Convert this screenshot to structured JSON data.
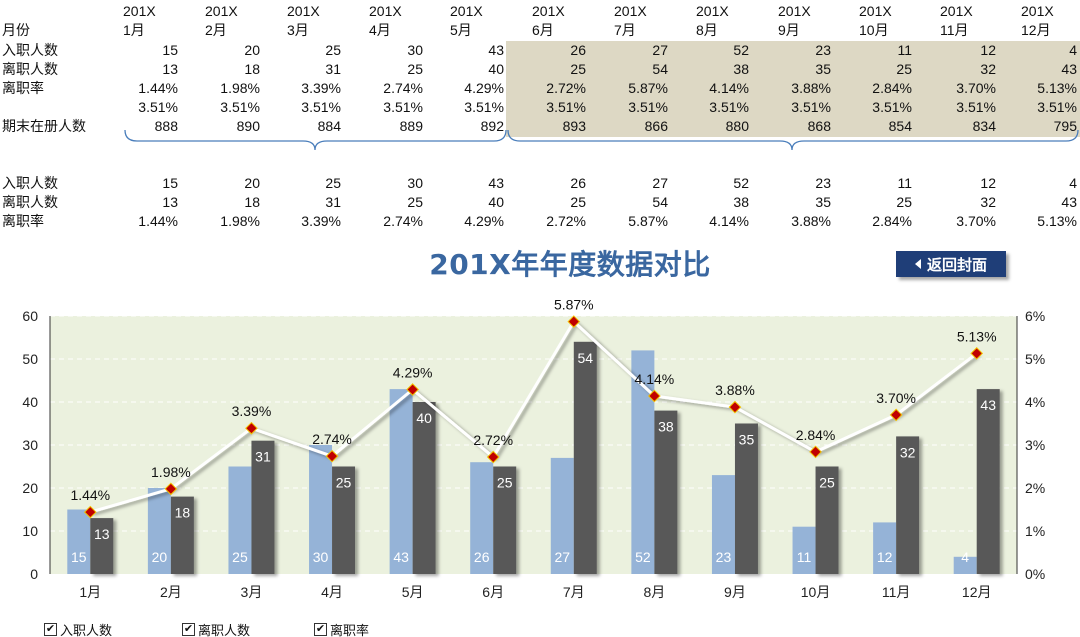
{
  "top_table": {
    "corner_label": "月份",
    "months": [
      {
        "year": "201X",
        "month": "1月"
      },
      {
        "year": "201X",
        "month": "2月"
      },
      {
        "year": "201X",
        "month": "3月"
      },
      {
        "year": "201X",
        "month": "4月"
      },
      {
        "year": "201X",
        "month": "5月"
      },
      {
        "year": "201X",
        "month": "6月"
      },
      {
        "year": "201X",
        "month": "7月"
      },
      {
        "year": "201X",
        "month": "8月"
      },
      {
        "year": "201X",
        "month": "9月"
      },
      {
        "year": "201X",
        "month": "10月"
      },
      {
        "year": "201X",
        "month": "11月"
      },
      {
        "year": "201X",
        "month": "12月"
      }
    ],
    "rows": [
      {
        "label": "入职人数",
        "values": [
          "15",
          "20",
          "25",
          "30",
          "43",
          "26",
          "27",
          "52",
          "23",
          "11",
          "12",
          "4"
        ]
      },
      {
        "label": "离职人数",
        "values": [
          "13",
          "18",
          "31",
          "25",
          "40",
          "25",
          "54",
          "38",
          "35",
          "25",
          "32",
          "43"
        ]
      },
      {
        "label": "离职率",
        "values": [
          "1.44%",
          "1.98%",
          "3.39%",
          "2.74%",
          "4.29%",
          "2.72%",
          "5.87%",
          "4.14%",
          "3.88%",
          "2.84%",
          "3.70%",
          "5.13%"
        ]
      },
      {
        "label": "",
        "values": [
          "3.51%",
          "3.51%",
          "3.51%",
          "3.51%",
          "3.51%",
          "3.51%",
          "3.51%",
          "3.51%",
          "3.51%",
          "3.51%",
          "3.51%",
          "3.51%"
        ]
      },
      {
        "label": "期末在册人数",
        "values": [
          "888",
          "890",
          "884",
          "889",
          "892",
          "893",
          "866",
          "880",
          "868",
          "854",
          "834",
          "795"
        ]
      }
    ]
  },
  "bottom_table": {
    "rows": [
      {
        "label": "入职人数",
        "values": [
          "15",
          "20",
          "25",
          "30",
          "43",
          "26",
          "27",
          "52",
          "23",
          "11",
          "12",
          "4"
        ]
      },
      {
        "label": "离职人数",
        "values": [
          "13",
          "18",
          "31",
          "25",
          "40",
          "25",
          "54",
          "38",
          "35",
          "25",
          "32",
          "43"
        ]
      },
      {
        "label": "离职率",
        "values": [
          "1.44%",
          "1.98%",
          "3.39%",
          "2.74%",
          "4.29%",
          "2.72%",
          "5.87%",
          "4.14%",
          "3.88%",
          "2.84%",
          "3.70%",
          "5.13%"
        ]
      }
    ]
  },
  "title": "201X年年度数据对比",
  "back_button_label": "返回封面",
  "colors": {
    "hire_bar": "#95b3d7",
    "leave_bar": "#595959",
    "plot_bg": "#ebf1de",
    "rate_line": "#ffffff",
    "rate_marker": "#c00000",
    "title": "#3a67a0",
    "button": "#1f3e78",
    "shade": "#ddd8c4"
  },
  "legend": [
    {
      "label": "入职人数",
      "checked": true
    },
    {
      "label": "离职人数",
      "checked": true
    },
    {
      "label": "离职率",
      "checked": true
    }
  ],
  "chart_data": {
    "type": "bar",
    "title": "201X年年度数据对比",
    "categories": [
      "1月",
      "2月",
      "3月",
      "4月",
      "5月",
      "6月",
      "7月",
      "8月",
      "9月",
      "10月",
      "11月",
      "12月"
    ],
    "series": [
      {
        "name": "入职人数",
        "type": "bar",
        "axis": "left",
        "values": [
          15,
          20,
          25,
          30,
          43,
          26,
          27,
          52,
          23,
          11,
          12,
          4
        ]
      },
      {
        "name": "离职人数",
        "type": "bar",
        "axis": "left",
        "values": [
          13,
          18,
          31,
          25,
          40,
          25,
          54,
          38,
          35,
          25,
          32,
          43
        ]
      },
      {
        "name": "离职率",
        "type": "line",
        "axis": "right",
        "values": [
          1.44,
          1.98,
          3.39,
          2.74,
          4.29,
          2.72,
          5.87,
          4.14,
          3.88,
          2.84,
          3.7,
          5.13
        ],
        "labels": [
          "1.44%",
          "1.98%",
          "3.39%",
          "2.74%",
          "4.29%",
          "2.72%",
          "5.87%",
          "4.14%",
          "3.88%",
          "2.84%",
          "3.70%",
          "5.13%"
        ]
      }
    ],
    "ylim": [
      0,
      60
    ],
    "y_ticks": [
      "0",
      "10",
      "20",
      "30",
      "40",
      "50",
      "60"
    ],
    "y2lim": [
      0,
      6
    ],
    "y2_ticks": [
      "0%",
      "1%",
      "2%",
      "3%",
      "4%",
      "5%",
      "6%"
    ],
    "grid": true,
    "legend_position": "bottom-left"
  }
}
